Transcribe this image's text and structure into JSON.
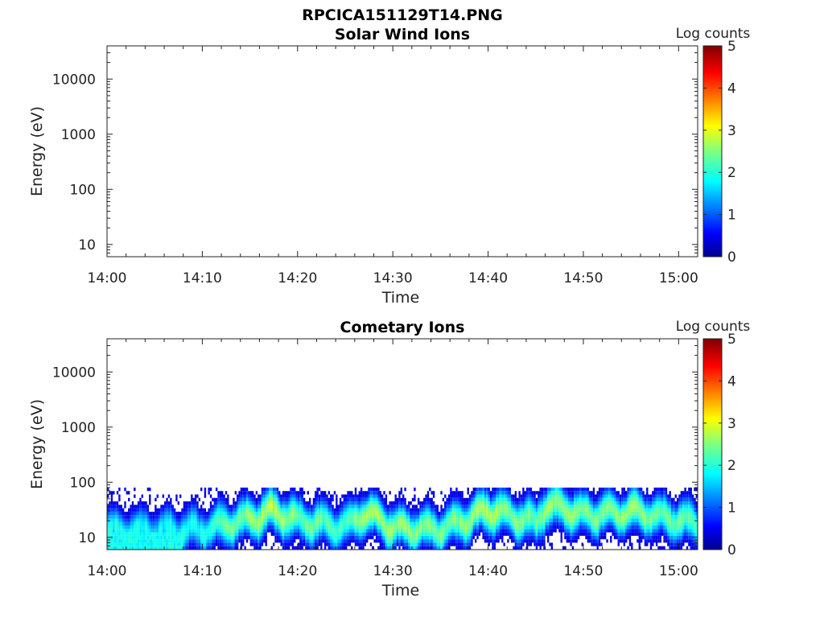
{
  "figure_title": "RPCICA151129T14.PNG",
  "chart_data": [
    {
      "type": "heatmap",
      "title": "Solar Wind Ions",
      "xlabel": "Time",
      "ylabel": "Energy (eV)",
      "y_scale": "log",
      "ylim": [
        6,
        40000
      ],
      "xlim": [
        "14:00",
        "15:02"
      ],
      "x_ticks": [
        "14:00",
        "14:10",
        "14:20",
        "14:30",
        "14:40",
        "14:50",
        "15:00"
      ],
      "y_ticks": [
        "10",
        "100",
        "1000",
        "10000"
      ],
      "colorbar": {
        "label": "Log counts",
        "range": [
          0,
          5
        ],
        "ticks": [
          "0",
          "1",
          "2",
          "3",
          "4",
          "5"
        ],
        "colormap": "jet"
      },
      "grid": false,
      "data_present": false,
      "values": []
    },
    {
      "type": "heatmap",
      "title": "Cometary Ions",
      "xlabel": "Time",
      "ylabel": "Energy (eV)",
      "y_scale": "log",
      "ylim": [
        6,
        40000
      ],
      "xlim": [
        "14:00",
        "15:02"
      ],
      "x_ticks": [
        "14:00",
        "14:10",
        "14:20",
        "14:30",
        "14:40",
        "14:50",
        "15:00"
      ],
      "y_ticks": [
        "10",
        "100",
        "1000",
        "10000"
      ],
      "colorbar": {
        "label": "Log counts",
        "range": [
          0,
          5
        ],
        "ticks": [
          "0",
          "1",
          "2",
          "3",
          "4",
          "5"
        ],
        "colormap": "jet"
      },
      "grid": false,
      "data_present": true,
      "energy_range_ev": [
        6,
        80
      ],
      "band_time_min": [
        0,
        5,
        10,
        15,
        17,
        20,
        25,
        27,
        30,
        35,
        38,
        40,
        45,
        46,
        50,
        55,
        60,
        62
      ],
      "band_peak_energy_ev": [
        13,
        13,
        14,
        22,
        30,
        20,
        16,
        28,
        15,
        14,
        22,
        32,
        18,
        40,
        26,
        30,
        20,
        18
      ],
      "band_peak_log_counts": [
        2.0,
        1.8,
        2.0,
        2.6,
        2.8,
        2.4,
        2.2,
        2.8,
        2.6,
        2.4,
        2.6,
        2.7,
        2.4,
        2.6,
        2.5,
        2.6,
        2.3,
        2.2
      ]
    }
  ]
}
